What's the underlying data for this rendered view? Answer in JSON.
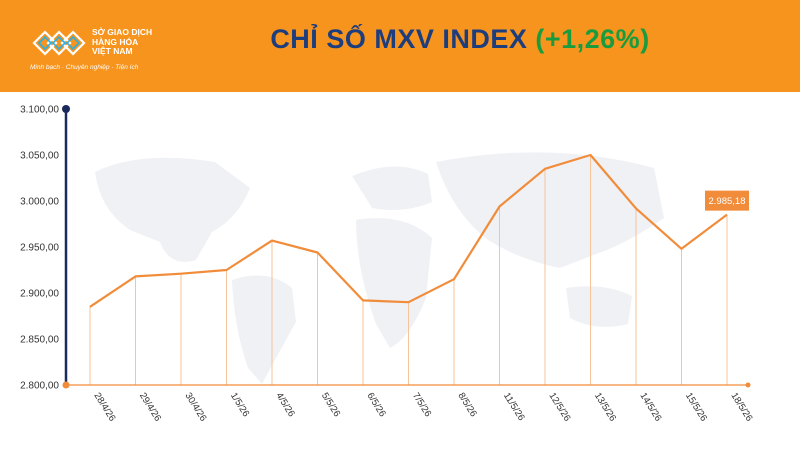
{
  "header": {
    "org_name": "SỞ GIAO DỊCH\nHÀNG HÓA\nVIỆT NAM",
    "slogan": "Minh bạch · Chuyên nghiệp · Tiện ích",
    "title_main": "CHỈ SỐ MXV INDEX",
    "title_change": "(+1,26%)",
    "colors": {
      "background": "#f7941d",
      "title": "#1d3d7d",
      "change": "#1a9c3e"
    }
  },
  "chart_data": {
    "type": "line",
    "title": "CHỈ SỐ MXV INDEX (+1,26%)",
    "xlabel": "",
    "ylabel": "",
    "categories": [
      "28/4/26",
      "29/4/26",
      "30/4/26",
      "1/5/26",
      "4/5/26",
      "5/5/26",
      "6/5/26",
      "7/5/26",
      "8/5/26",
      "11/5/26",
      "12/5/26",
      "13/5/26",
      "14/5/26",
      "15/5/26",
      "18/5/26"
    ],
    "series": [
      {
        "values": [
          2885,
          2918,
          2921,
          2925,
          2957,
          2944,
          2892,
          2890,
          2915,
          2994,
          3035,
          3050,
          2992,
          2948,
          2985.18
        ]
      }
    ],
    "y_ticks": [
      "3.100,00",
      "3.050,00",
      "3.000,00",
      "2.950,00",
      "2.900,00",
      "2.850,00",
      "2.800,00"
    ],
    "ylim": [
      2800,
      3100
    ],
    "grid": false,
    "last_value_label": "2.985,18",
    "colors": {
      "line": "#f08c3a",
      "drop_lines": "#f6c39a",
      "y_axis": "#1b2a5c",
      "label_box": "#f08c3a"
    }
  }
}
